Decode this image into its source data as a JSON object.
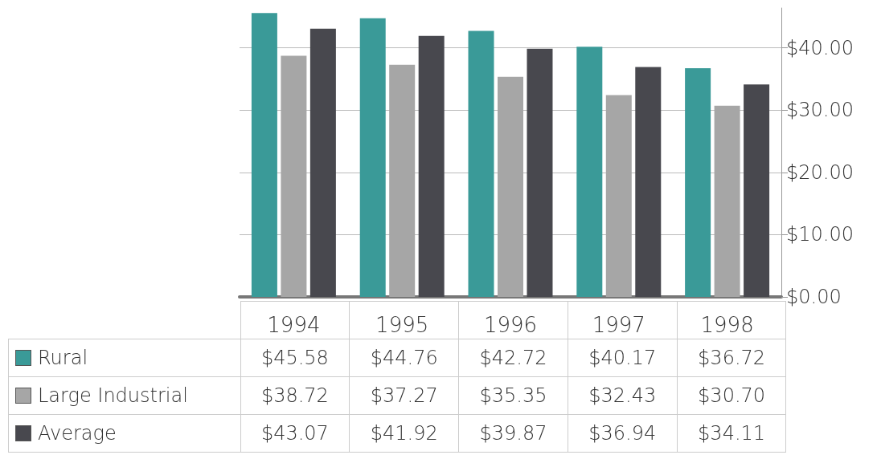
{
  "chart_data": {
    "type": "bar",
    "categories": [
      "1994",
      "1995",
      "1996",
      "1997",
      "1998"
    ],
    "series": [
      {
        "name": "Rural",
        "color": "#3a9a98",
        "values": [
          45.58,
          44.76,
          42.72,
          40.17,
          36.72
        ],
        "value_labels": [
          "$45.58",
          "$44.76",
          "$42.72",
          "$40.17",
          "$36.72"
        ]
      },
      {
        "name": "Large Industrial",
        "color": "#a6a6a6",
        "values": [
          38.72,
          37.27,
          35.35,
          32.43,
          30.7
        ],
        "value_labels": [
          "$38.72",
          "$37.27",
          "$35.35",
          "$32.43",
          "$30.70"
        ]
      },
      {
        "name": "Average",
        "color": "#48484e",
        "values": [
          43.07,
          41.92,
          39.87,
          36.94,
          34.11
        ],
        "value_labels": [
          "$43.07",
          "$41.92",
          "$39.87",
          "$36.94",
          "$34.11"
        ]
      }
    ],
    "ylim": [
      0,
      46.4
    ],
    "yticks": [
      {
        "value": 0,
        "label": "$0.00"
      },
      {
        "value": 10,
        "label": "$10.00"
      },
      {
        "value": 20,
        "label": "$20.00"
      },
      {
        "value": 30,
        "label": "$30.00"
      },
      {
        "value": 40,
        "label": "$40.00"
      }
    ],
    "grid": "y",
    "legend": "bottom left"
  }
}
